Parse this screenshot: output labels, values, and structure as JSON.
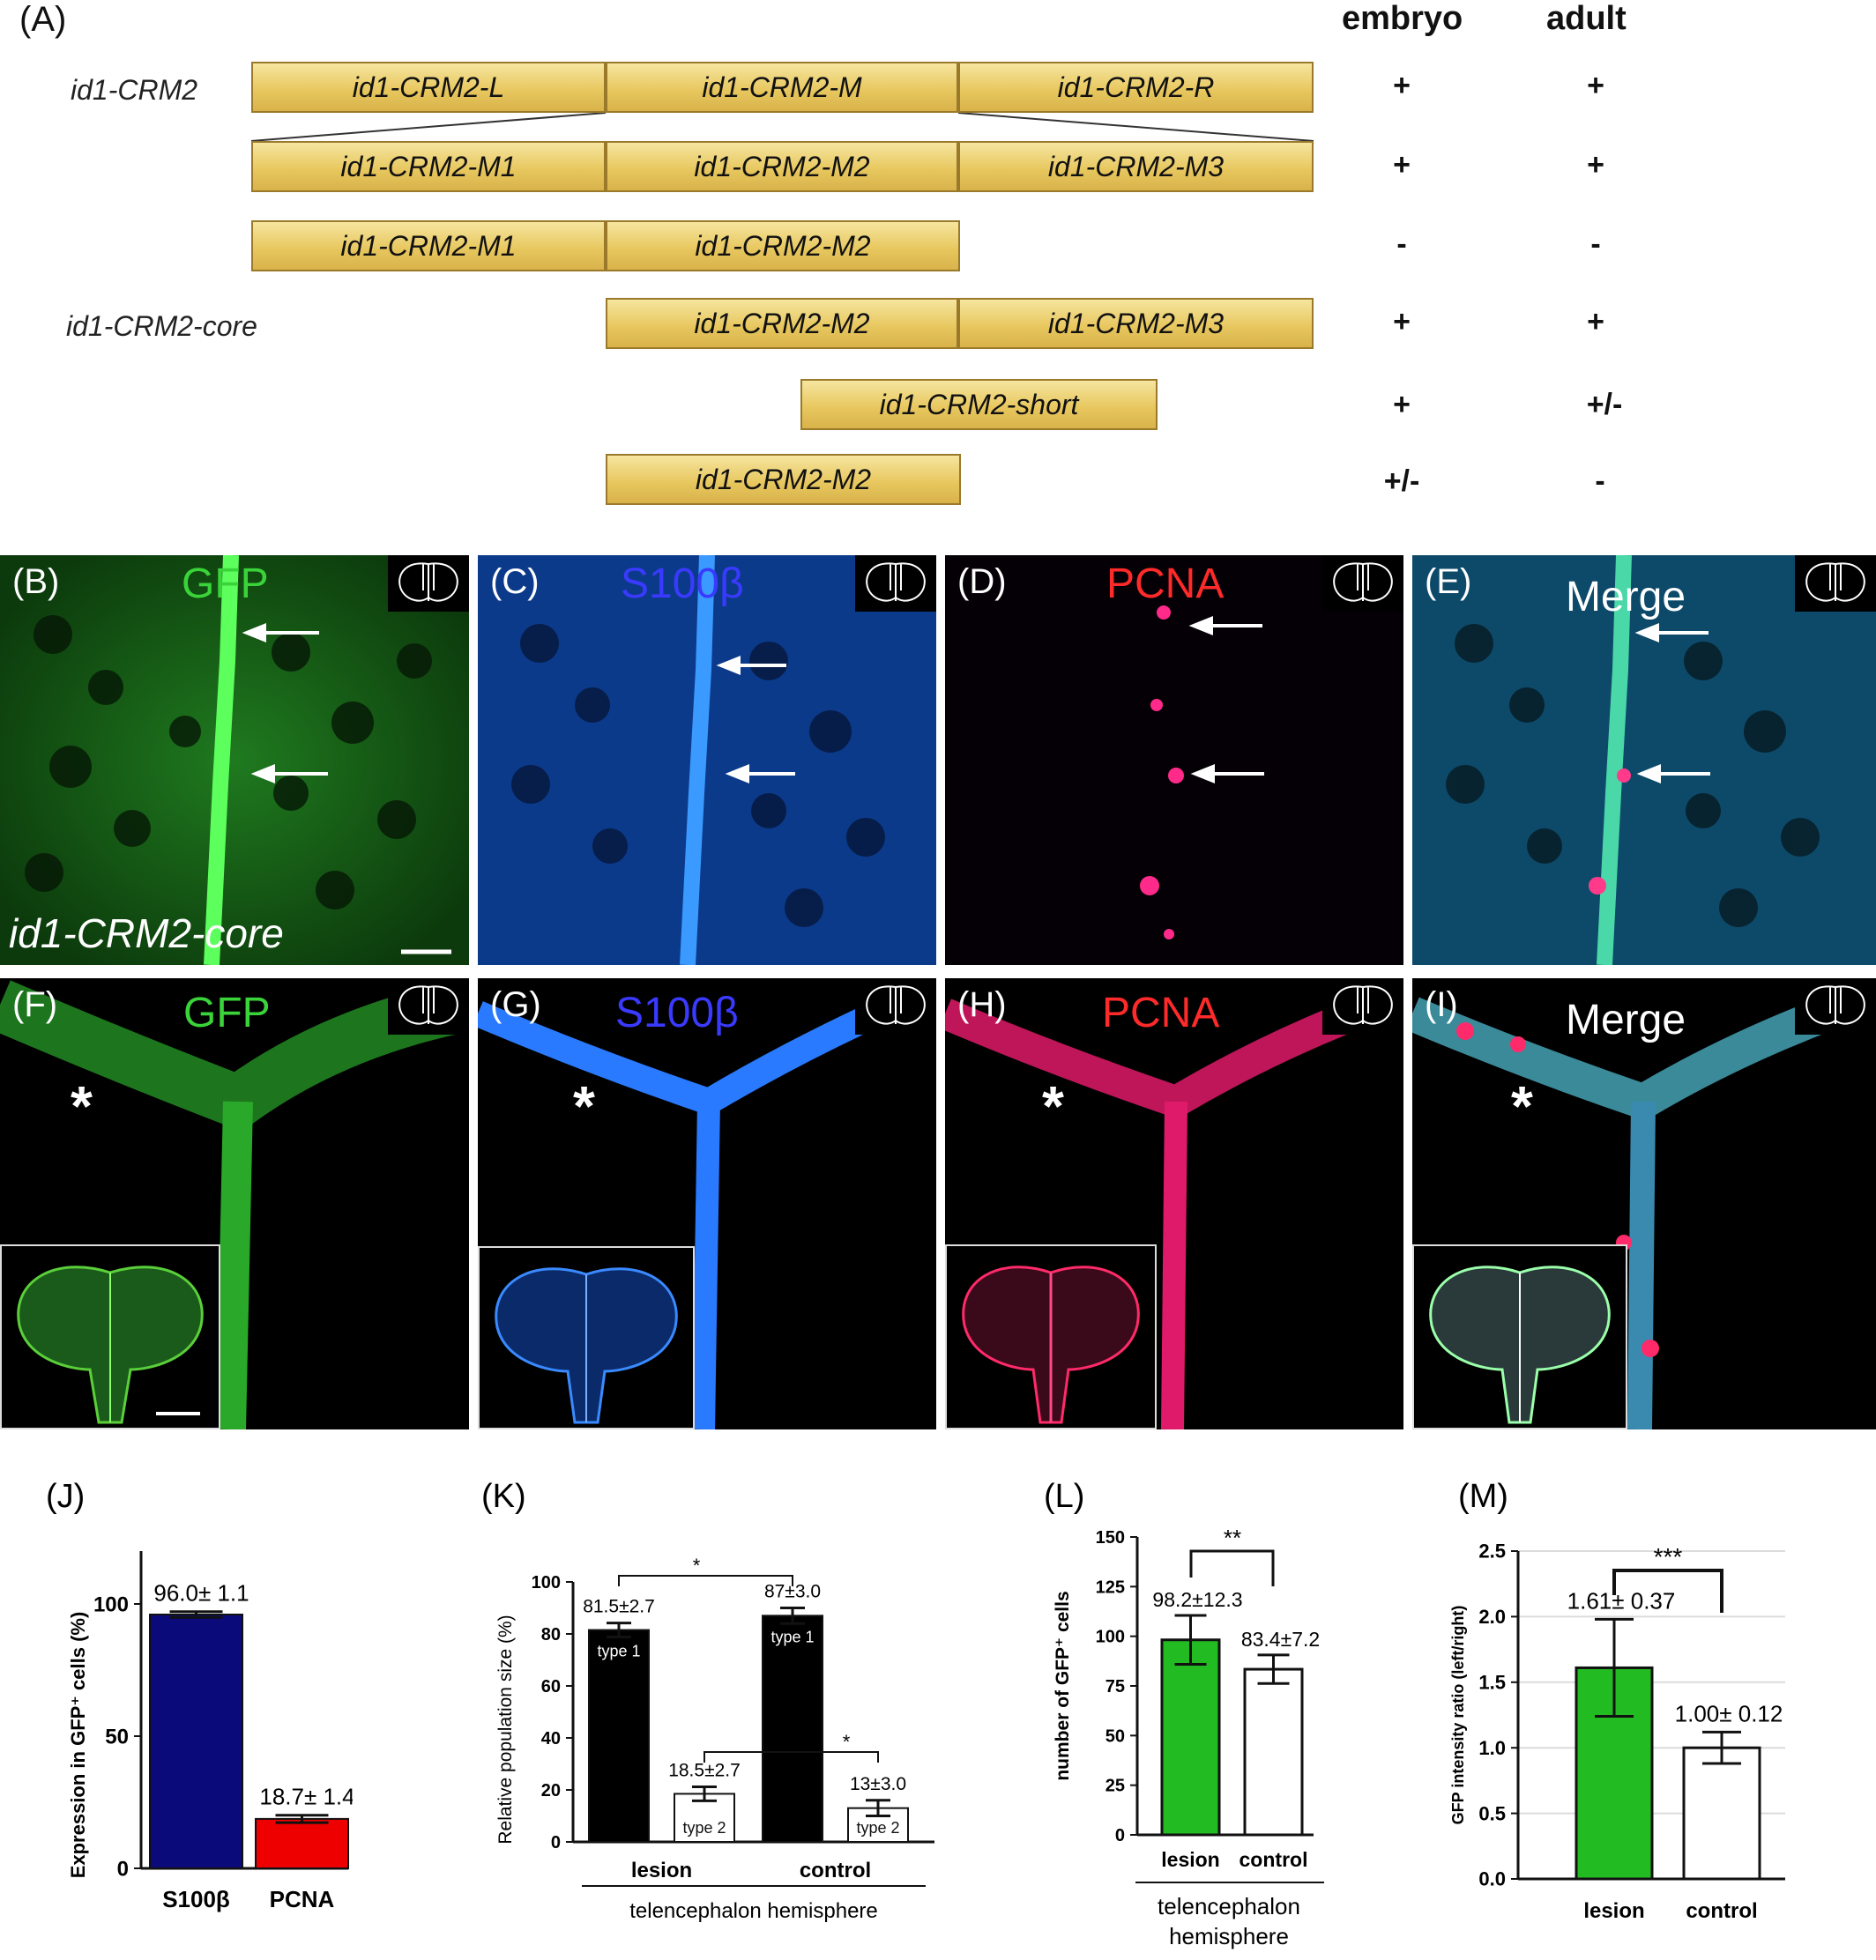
{
  "panelA": {
    "label": "(A)",
    "col_headers": [
      "embryo",
      "adult"
    ],
    "rows": [
      {
        "name": "id1-CRM2",
        "segments": [
          "id1-CRM2-L",
          "id1-CRM2-M",
          "id1-CRM2-R"
        ],
        "embryo": "+",
        "adult": "+"
      },
      {
        "name": "",
        "segments": [
          "id1-CRM2-M1",
          "id1-CRM2-M2",
          "id1-CRM2-M3"
        ],
        "embryo": "+",
        "adult": "+"
      },
      {
        "name": "",
        "segments": [
          "id1-CRM2-M1",
          "id1-CRM2-M2"
        ],
        "embryo": "-",
        "adult": "-"
      },
      {
        "name": "id1-CRM2-core",
        "segments": [
          "id1-CRM2-M2",
          "id1-CRM2-M3"
        ],
        "embryo": "+",
        "adult": "+"
      },
      {
        "name": "",
        "segments": [
          "id1-CRM2-short"
        ],
        "embryo": "+",
        "adult": "+/-"
      },
      {
        "name": "",
        "segments": [
          "id1-CRM2-M2"
        ],
        "embryo": "+/-",
        "adult": "-"
      }
    ]
  },
  "micro_row1": [
    {
      "label": "(B)",
      "channel": "GFP",
      "color": "#3ad43a",
      "extra": "id1-CRM2-core"
    },
    {
      "label": "(C)",
      "channel": "S100β",
      "color": "#3a3aff"
    },
    {
      "label": "(D)",
      "channel": "PCNA",
      "color": "#ff2a2a"
    },
    {
      "label": "(E)",
      "channel": "Merge",
      "color": "#ffffff"
    }
  ],
  "micro_row2": [
    {
      "label": "(F)",
      "channel": "GFP",
      "color": "#3ad43a"
    },
    {
      "label": "(G)",
      "channel": "S100β",
      "color": "#3a3aff"
    },
    {
      "label": "(H)",
      "channel": "PCNA",
      "color": "#ff2a2a"
    },
    {
      "label": "(I)",
      "channel": "Merge",
      "color": "#ffffff"
    }
  ],
  "star": "*",
  "chart_data": [
    {
      "panel": "(J)",
      "type": "bar",
      "categories": [
        "S100β",
        "PCNA"
      ],
      "values": [
        96.0,
        18.7
      ],
      "errors": [
        1.1,
        1.4
      ],
      "value_labels": [
        "96.0± 1.1",
        "18.7± 1.4"
      ],
      "colors": [
        "#0a0a7a",
        "#ee0000"
      ],
      "ylabel": "Expression in GFP⁺ cells (%)",
      "ylim": [
        0,
        120
      ],
      "yticks": [
        0,
        50,
        100
      ]
    },
    {
      "panel": "(K)",
      "type": "bar",
      "groups": [
        "lesion",
        "control"
      ],
      "series": [
        {
          "name": "type 1",
          "values": [
            81.5,
            87
          ],
          "errors": [
            2.7,
            3.0
          ],
          "labels": [
            "81.5±2.7",
            "87±3.0"
          ]
        },
        {
          "name": "type 2",
          "values": [
            18.5,
            13
          ],
          "errors": [
            2.7,
            3.0
          ],
          "labels": [
            "18.5±2.7",
            "13±3.0"
          ]
        }
      ],
      "ylabel": "Relative population size (%)",
      "xlabel": "telencephalon hemisphere",
      "ylim": [
        0,
        100
      ],
      "yticks": [
        0,
        20,
        40,
        60,
        80,
        100
      ],
      "significance": [
        "*",
        "*"
      ]
    },
    {
      "panel": "(L)",
      "type": "bar",
      "categories": [
        "lesion",
        "control"
      ],
      "values": [
        98.2,
        83.4
      ],
      "errors": [
        12.3,
        7.2
      ],
      "value_labels": [
        "98.2±12.3",
        "83.4±7.2"
      ],
      "colors": [
        "#22bb22",
        "#ffffff"
      ],
      "ylabel": "number of GFP⁺ cells",
      "xlabel_lines": [
        "telencephalon",
        "hemisphere"
      ],
      "ylim": [
        0,
        150
      ],
      "yticks": [
        0,
        25,
        50,
        75,
        100,
        125,
        150
      ],
      "significance": "**"
    },
    {
      "panel": "(M)",
      "type": "bar",
      "categories": [
        "lesion",
        "control"
      ],
      "values": [
        1.61,
        1.0
      ],
      "errors": [
        0.37,
        0.12
      ],
      "value_labels": [
        "1.61± 0.37",
        "1.00± 0.12"
      ],
      "colors": [
        "#22bb22",
        "#ffffff"
      ],
      "ylabel": "GFP intensity ratio (left/right)",
      "ylim": [
        0,
        2.5
      ],
      "yticks": [
        "0.0",
        "0.5",
        "1.0",
        "1.5",
        "2.0",
        "2.5"
      ],
      "significance": "***"
    }
  ]
}
